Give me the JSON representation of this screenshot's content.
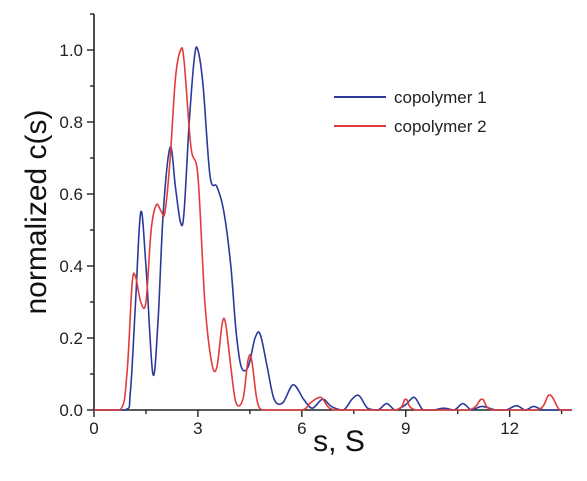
{
  "chart_data": {
    "type": "line",
    "xlabel": "s, S",
    "ylabel": "normalized c(s)",
    "xlim": [
      0,
      13.8
    ],
    "ylim": [
      0,
      1.1
    ],
    "x_ticks": [
      0,
      3,
      6,
      9,
      12
    ],
    "x_tick_labels": [
      "0",
      "3",
      "6",
      "9",
      "12"
    ],
    "y_ticks": [
      0,
      0.2,
      0.4,
      0.6,
      0.8,
      1.0
    ],
    "y_tick_labels": [
      "0.0",
      "0.2",
      "0.4",
      "0.6",
      "0.8",
      "1.0"
    ],
    "grid": false,
    "legend_position": "top-right",
    "series": [
      {
        "name": "copolymer 1",
        "color": "#2b3a9a",
        "x": [
          0,
          0.9,
          1.05,
          1.2,
          1.35,
          1.5,
          1.7,
          1.85,
          2.0,
          2.2,
          2.35,
          2.5,
          2.6,
          2.75,
          2.9,
          3.0,
          3.15,
          3.35,
          3.55,
          3.75,
          3.95,
          4.1,
          4.25,
          4.45,
          4.65,
          4.8,
          5.0,
          5.2,
          5.45,
          5.75,
          6.05,
          6.3,
          6.6,
          6.85,
          7.2,
          7.45,
          7.65,
          7.9,
          8.2,
          8.45,
          8.7,
          9.0,
          9.25,
          9.5,
          9.8,
          10.1,
          10.4,
          10.65,
          10.9,
          11.2,
          11.6,
          11.9,
          12.2,
          12.45,
          12.7,
          13.0,
          13.8
        ],
        "y": [
          0,
          0,
          0.05,
          0.3,
          0.55,
          0.4,
          0.1,
          0.25,
          0.55,
          0.73,
          0.62,
          0.52,
          0.55,
          0.8,
          0.98,
          1.0,
          0.9,
          0.65,
          0.62,
          0.55,
          0.4,
          0.22,
          0.12,
          0.12,
          0.2,
          0.21,
          0.12,
          0.03,
          0.02,
          0.07,
          0.03,
          0.005,
          0.03,
          0.01,
          0.0,
          0.03,
          0.04,
          0.005,
          0.0,
          0.018,
          0.0,
          0.015,
          0.035,
          0.0,
          0.0,
          0.005,
          0.0,
          0.018,
          0.0,
          0.01,
          0.0,
          0.0,
          0.012,
          0.0,
          0.01,
          0.0,
          0.0
        ]
      },
      {
        "name": "copolymer 2",
        "color": "#e23b3b",
        "x": [
          0,
          0.75,
          0.95,
          1.1,
          1.2,
          1.35,
          1.5,
          1.65,
          1.8,
          1.95,
          2.05,
          2.2,
          2.35,
          2.5,
          2.6,
          2.8,
          3.0,
          3.2,
          3.4,
          3.55,
          3.7,
          3.8,
          3.95,
          4.1,
          4.3,
          4.45,
          4.55,
          4.7,
          4.85,
          5.2,
          6.0,
          6.25,
          6.55,
          6.8,
          7.2,
          8.7,
          9.0,
          9.3,
          10.8,
          11.2,
          11.5,
          12.8,
          13.15,
          13.45,
          13.8
        ],
        "y": [
          0,
          0,
          0.1,
          0.35,
          0.37,
          0.3,
          0.3,
          0.5,
          0.57,
          0.55,
          0.55,
          0.7,
          0.92,
          1.0,
          0.97,
          0.73,
          0.65,
          0.3,
          0.13,
          0.12,
          0.24,
          0.24,
          0.12,
          0.02,
          0.03,
          0.14,
          0.14,
          0.03,
          0.0,
          0.0,
          0.0,
          0.02,
          0.035,
          0.005,
          0.0,
          0.0,
          0.03,
          0.0,
          0.0,
          0.03,
          0.0,
          0.0,
          0.042,
          0.0,
          0.0
        ]
      }
    ]
  }
}
